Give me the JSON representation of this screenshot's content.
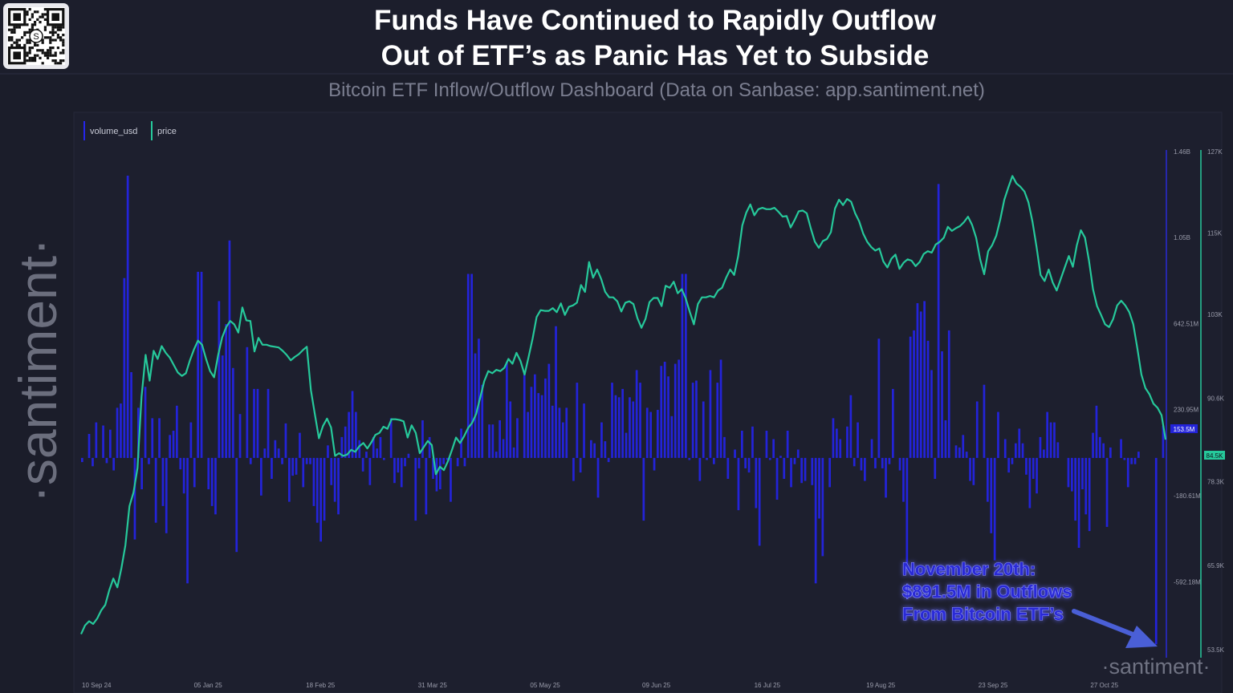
{
  "header": {
    "title_line1": "Funds Have Continued to Rapidly Outflow",
    "title_line2": "Out of ETF’s as Panic Has Yet to Subside",
    "subtitle": "Bitcoin ETF Inflow/Outflow Dashboard (Data on Sanbase: app.santiment.net)"
  },
  "brand": {
    "side_logo": "·santiment·",
    "watermark": "·santiment·"
  },
  "legend": {
    "volume_label": "volume_usd",
    "price_label": "price"
  },
  "annotation": {
    "line1": "November 20th:",
    "line2": "$891.5M in Outflows",
    "line3": "From Bitcoin ETF’s"
  },
  "colors": {
    "background": "#1b1d2a",
    "bars": "#2323d9",
    "price_line": "#26c99b",
    "annotation_text": "#2a2ad6",
    "arrow": "#4a5fd6"
  },
  "chart_data": {
    "type": "bar",
    "title": "Bitcoin ETF Inflow/Outflow Dashboard",
    "x_tick_labels": [
      "10 Sep 24",
      "05 Jan 25",
      "18 Feb 25",
      "31 Mar 25",
      "05 May 25",
      "09 Jun 25",
      "16 Jul 25",
      "19 Aug 25",
      "23 Sep 25",
      "27 Oct 25"
    ],
    "left_axis": {
      "label": "volume_usd",
      "ticks": [
        "1.46B",
        "1.05B",
        "642.51M",
        "230.95M",
        "-180.61M",
        "-592.18M"
      ],
      "tick_values": [
        1465000000,
        1054000000,
        642510000,
        230950000,
        -180610000,
        -592180000
      ],
      "ylim": [
        -917000000,
        1465000000
      ],
      "current_label": "153.5M"
    },
    "right_axis": {
      "label": "price",
      "ticks": [
        "127K",
        "115K",
        "103K",
        "90.6K",
        "78.3K",
        "65.9K",
        "53.5K"
      ],
      "tick_values": [
        127000,
        115000,
        103000,
        90600,
        78300,
        65900,
        53500
      ],
      "ylim": [
        53500,
        127000
      ],
      "current_label": "84.5K"
    },
    "series": [
      {
        "name": "volume_usd",
        "type": "bar",
        "unit": "USD",
        "values": [
          -20000000,
          0,
          115000000,
          -40000000,
          170000000,
          0,
          155000000,
          -25000000,
          135000000,
          -60000000,
          240000000,
          260000000,
          860000000,
          1350000000,
          410000000,
          -390000000,
          240000000,
          -150000000,
          340000000,
          -30000000,
          190000000,
          -310000000,
          190000000,
          -230000000,
          -360000000,
          110000000,
          130000000,
          250000000,
          -55000000,
          -170000000,
          -600000000,
          170000000,
          -140000000,
          890000000,
          890000000,
          0,
          -150000000,
          -230000000,
          -270000000,
          750000000,
          490000000,
          640000000,
          1040000000,
          430000000,
          -450000000,
          210000000,
          0,
          530000000,
          -30000000,
          330000000,
          330000000,
          -180000000,
          45000000,
          330000000,
          -100000000,
          85000000,
          45000000,
          -30000000,
          165000000,
          -210000000,
          -85000000,
          -80000000,
          120000000,
          -140000000,
          -30000000,
          -30000000,
          -230000000,
          -310000000,
          -400000000,
          -300000000,
          60000000,
          -130000000,
          -210000000,
          -270000000,
          100000000,
          150000000,
          220000000,
          320000000,
          220000000,
          85000000,
          -65000000,
          30000000,
          -130000000,
          100000000,
          45000000,
          100000000,
          -10000000,
          0,
          190000000,
          -120000000,
          -70000000,
          -140000000,
          -40000000,
          20000000,
          0,
          -300000000,
          -50000000,
          180000000,
          -270000000,
          100000000,
          -100000000,
          -160000000,
          -150000000,
          -30000000,
          -10000000,
          -210000000,
          0,
          -40000000,
          140000000,
          -40000000,
          880000000,
          880000000,
          500000000,
          570000000,
          350000000,
          0,
          160000000,
          160000000,
          30000000,
          180000000,
          90000000,
          460000000,
          270000000,
          50000000,
          190000000,
          0,
          400000000,
          220000000,
          340000000,
          400000000,
          310000000,
          300000000,
          380000000,
          450000000,
          250000000,
          630000000,
          240000000,
          170000000,
          240000000,
          0,
          -110000000,
          360000000,
          -70000000,
          260000000,
          0,
          85000000,
          70000000,
          -190000000,
          170000000,
          80000000,
          -20000000,
          360000000,
          300000000,
          290000000,
          330000000,
          120000000,
          290000000,
          270000000,
          420000000,
          360000000,
          -300000000,
          240000000,
          220000000,
          -60000000,
          230000000,
          440000000,
          460000000,
          390000000,
          200000000,
          450000000,
          470000000,
          880000000,
          880000000,
          -10000000,
          360000000,
          370000000,
          -110000000,
          270000000,
          -10000000,
          420000000,
          -30000000,
          360000000,
          470000000,
          100000000,
          -100000000,
          0,
          40000000,
          -250000000,
          130000000,
          -50000000,
          -70000000,
          150000000,
          -240000000,
          -420000000,
          0,
          130000000,
          -10000000,
          90000000,
          -200000000,
          10000000,
          -100000000,
          130000000,
          -140000000,
          -30000000,
          40000000,
          -120000000,
          -110000000,
          0,
          -130000000,
          -600000000,
          -290000000,
          -470000000,
          0,
          -140000000,
          190000000,
          140000000,
          90000000,
          0,
          150000000,
          300000000,
          -40000000,
          170000000,
          -60000000,
          -110000000,
          0,
          90000000,
          -50000000,
          570000000,
          -50000000,
          -190000000,
          -30000000,
          330000000,
          0,
          -60000000,
          -210000000,
          -530000000,
          580000000,
          610000000,
          740000000,
          700000000,
          750000000,
          560000000,
          420000000,
          -100000000,
          1310000000,
          510000000,
          180000000,
          610000000,
          0,
          60000000,
          50000000,
          110000000,
          30000000,
          -110000000,
          -130000000,
          270000000,
          0,
          350000000,
          -210000000,
          -360000000,
          -490000000,
          220000000,
          0,
          90000000,
          -70000000,
          -30000000,
          70000000,
          140000000,
          70000000,
          -80000000,
          -240000000,
          -100000000,
          -170000000,
          100000000,
          40000000,
          220000000,
          170000000,
          170000000,
          75000000,
          0,
          0,
          -140000000,
          -160000000,
          -300000000,
          -430000000,
          -150000000,
          -270000000,
          -350000000,
          120000000,
          250000000,
          100000000,
          70000000,
          -330000000,
          50000000,
          0,
          0,
          90000000,
          -10000000,
          -140000000,
          -30000000,
          -30000000,
          30000000,
          0,
          0,
          0,
          0,
          -891500000,
          0,
          153500000
        ]
      },
      {
        "name": "price",
        "type": "line",
        "unit": "USD",
        "values": [
          55800,
          57100,
          57700,
          57300,
          58100,
          59300,
          60100,
          62300,
          64000,
          62700,
          65500,
          68900,
          74700,
          76700,
          80300,
          90800,
          97000,
          93200,
          97600,
          96400,
          98300,
          97300,
          96600,
          95500,
          94400,
          93900,
          94300,
          96200,
          97800,
          99100,
          98500,
          96400,
          94600,
          93700,
          97000,
          99600,
          101100,
          102000,
          101500,
          100300,
          104000,
          102100,
          102000,
          97500,
          99500,
          98500,
          98500,
          98300,
          98200,
          98100,
          97600,
          97000,
          96200,
          96700,
          97100,
          97700,
          98200,
          91800,
          88200,
          84700,
          86500,
          87600,
          86300,
          82100,
          82500,
          82100,
          82300,
          83000,
          82700,
          83500,
          84000,
          83200,
          84100,
          85200,
          85500,
          86400,
          86100,
          87500,
          87500,
          87400,
          87200,
          84800,
          86600,
          85500,
          82500,
          83400,
          84300,
          83700,
          79400,
          80500,
          80000,
          81300,
          83000,
          84800,
          84000,
          85000,
          86200,
          87000,
          88300,
          90700,
          93100,
          94600,
          94300,
          94800,
          94600,
          95100,
          96400,
          95700,
          97300,
          96100,
          94100,
          96700,
          99400,
          102600,
          103600,
          103500,
          103500,
          103900,
          103300,
          104600,
          102900,
          104100,
          104300,
          104700,
          107300,
          106300,
          110700,
          108400,
          109600,
          108200,
          106300,
          105500,
          105500,
          104900,
          103400,
          104700,
          104900,
          104500,
          102400,
          101000,
          102300,
          104800,
          105400,
          105400,
          104200,
          107200,
          106900,
          107800,
          106100,
          106700,
          105300,
          103300,
          101500,
          104500,
          105500,
          105500,
          105700,
          105500,
          106500,
          106900,
          108400,
          109600,
          108800,
          111600,
          116100,
          118000,
          119200,
          117600,
          118500,
          118700,
          118500,
          118500,
          118700,
          118100,
          117400,
          117500,
          115800,
          116900,
          118200,
          118300,
          117900,
          115700,
          113700,
          112800,
          113800,
          114100,
          115100,
          118600,
          119900,
          119100,
          120000,
          119600,
          117900,
          116700,
          114900,
          113700,
          112900,
          112400,
          112700,
          110800,
          109900,
          111200,
          111800,
          109700,
          110600,
          111100,
          110900,
          110100,
          110700,
          111900,
          112300,
          112100,
          113300,
          113700,
          114300,
          115900,
          115300,
          115700,
          116000,
          116600,
          117400,
          116200,
          114300,
          111100,
          108900,
          112300,
          113200,
          114600,
          117000,
          119900,
          121700,
          123400,
          122300,
          121800,
          121100,
          119500,
          116600,
          112900,
          108800,
          107900,
          109600,
          107700,
          106500,
          108200,
          109900,
          111600,
          110000,
          113200,
          115400,
          114300,
          110900,
          106700,
          104200,
          102900,
          101500,
          101100,
          102300,
          104300,
          105000,
          104300,
          103300,
          101500,
          98000,
          94100,
          92100,
          91200,
          89800,
          89200,
          88100,
          84500
        ]
      }
    ]
  }
}
